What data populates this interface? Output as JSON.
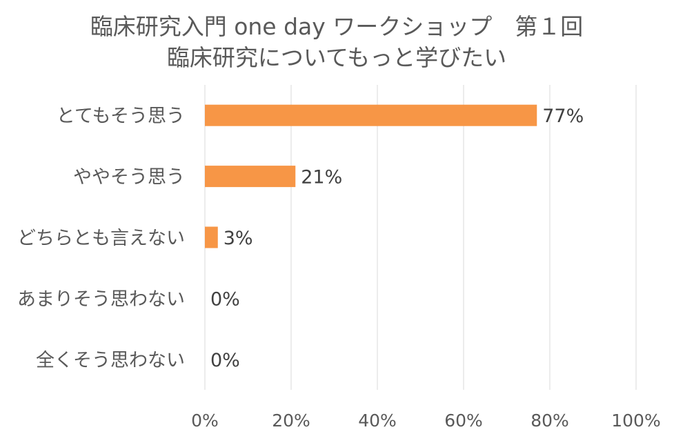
{
  "chart_data": {
    "type": "bar",
    "orientation": "horizontal",
    "title": [
      "臨床研究入門 one day ワークショップ　第１回",
      "臨床研究についてもっと学びたい"
    ],
    "categories": [
      "とてもそう思う",
      "ややそう思う",
      "どちらとも言えない",
      "あまりそう思わない",
      "全くそう思わない"
    ],
    "values": [
      77,
      21,
      3,
      0,
      0
    ],
    "data_labels": [
      "77%",
      "21%",
      "3%",
      "0%",
      "0%"
    ],
    "xlim": [
      0,
      100
    ],
    "xticks": [
      0,
      20,
      40,
      60,
      80,
      100
    ],
    "xtick_labels": [
      "0%",
      "20%",
      "40%",
      "60%",
      "80%",
      "100%"
    ],
    "grid": true,
    "legend": "none",
    "bar_color": "#F79646"
  }
}
